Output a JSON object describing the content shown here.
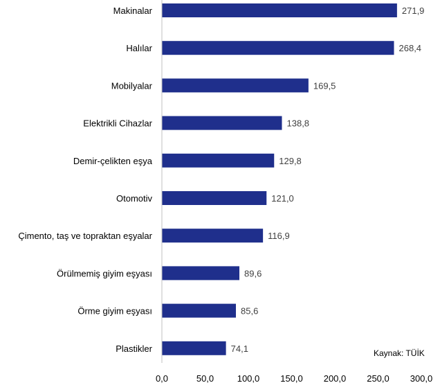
{
  "chart_data": {
    "type": "bar",
    "orientation": "horizontal",
    "categories": [
      "Makinalar",
      "Halılar",
      "Mobilyalar",
      "Elektrikli Cihazlar",
      "Demir-çelikten eşya",
      "Otomotiv",
      "Çimento, taş ve topraktan eşyalar",
      "Örülmemiş giyim eşyası",
      "Örme giyim eşyası",
      "Plastikler"
    ],
    "values": [
      271.9,
      268.4,
      169.5,
      138.8,
      129.8,
      121.0,
      116.9,
      89.6,
      85.6,
      74.1
    ],
    "value_labels": [
      "271,9",
      "268,4",
      "169,5",
      "138,8",
      "129,8",
      "121,0",
      "116,9",
      "89,6",
      "85,6",
      "74,1"
    ],
    "x_ticks": [
      0,
      50,
      100,
      150,
      200,
      250,
      300
    ],
    "x_tick_labels": [
      "0,0",
      "50,0",
      "100,0",
      "150,0",
      "200,0",
      "250,0",
      "300,0"
    ],
    "xlim": [
      0,
      300
    ],
    "grid": false,
    "legend": "none",
    "bar_color": "#1f2f8c",
    "title": "",
    "xlabel": "",
    "ylabel": ""
  },
  "source_note": "Kaynak: TÜİK"
}
